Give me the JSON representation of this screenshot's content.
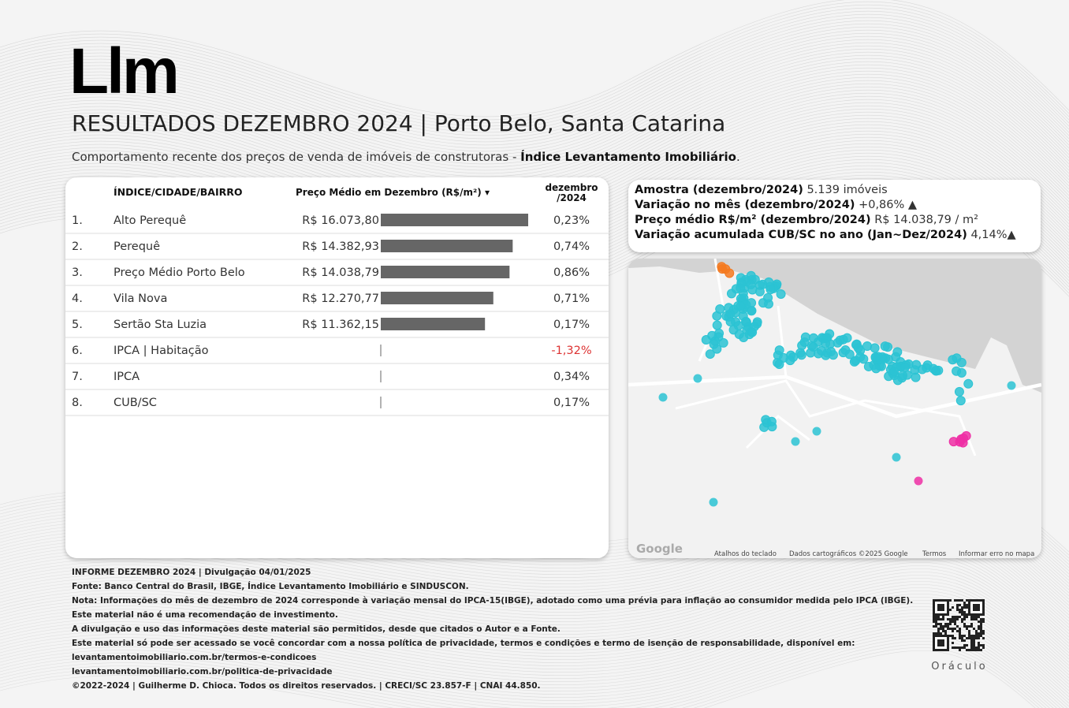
{
  "header": {
    "logo": "Llm",
    "title": "RESULTADOS DEZEMBRO 2024 | Porto Belo, Santa Catarina",
    "subtitle_prefix": "Comportamento recente dos preços de venda de imóveis de construtoras - ",
    "subtitle_bold": "Índice Levantamento Imobiliário",
    "subtitle_suffix": "."
  },
  "table": {
    "columns": [
      "ÍNDICE/CIDADE/BAIRRO",
      "Preço Médio em Dezembro (R$/m²) ▾",
      [
        "dezembro",
        "/2024"
      ]
    ],
    "rows": [
      {
        "rank": "1.",
        "name": "Alto Perequê",
        "price": {
          "value": 16073.8,
          "label": "R$ 16.073,80"
        },
        "change": "0,23%"
      },
      {
        "rank": "2.",
        "name": "Perequê",
        "price": {
          "value": 14382.93,
          "label": "R$ 14.382,93"
        },
        "change": "0,74%"
      },
      {
        "rank": "3.",
        "name": "Preço Médio Porto Belo",
        "price": {
          "value": 14038.79,
          "label": "R$ 14.038,79"
        },
        "change": "0,86%"
      },
      {
        "rank": "4.",
        "name": "Vila Nova",
        "price": {
          "value": 12270.77,
          "label": "R$ 12.270,77"
        },
        "change": "0,71%"
      },
      {
        "rank": "5.",
        "name": "Sertão Sta Luzia",
        "price": {
          "value": 11362.15,
          "label": "R$ 11.362,15"
        },
        "change": "0,17%"
      },
      {
        "rank": "6.",
        "name": "IPCA | Habitação",
        "change": "-1,32%"
      },
      {
        "rank": "7.",
        "name": "IPCA",
        "change": "0,34%"
      },
      {
        "rank": "8.",
        "name": "CUB/SC",
        "change": "0,17%"
      }
    ]
  },
  "summary": [
    {
      "label": "Amostra (dezembro/2024)",
      "value": "5.139 imóveis"
    },
    {
      "label": "Variação no mês (dezembro/2024)",
      "value": "+0,86% ▲"
    },
    {
      "label": "Preço médio R$/m² (dezembro/2024)",
      "value": "R$ 14.038,79 / m²"
    },
    {
      "label": "Variação acumulada CUB/SC no ano (Jan~Dez/2024)",
      "value": "4,14%▲"
    }
  ],
  "map": {
    "logo": "Google",
    "attribution": [
      "Atalhos do teclado",
      "Dados cartográficos ©2025 Google",
      "Termos",
      "Informar erro no mapa"
    ]
  },
  "footer": {
    "lines": [
      "INFORME DEZEMBRO 2024 | Divulgação 04/01/2025",
      "Fonte: Banco Central do Brasil, IBGE, Índice Levantamento Imobiliário e SINDUSCON.",
      "Nota: Informações do mês de dezembro de 2024 corresponde à variação mensal do IPCA-15(IBGE), adotado como uma prévia para inflação ao consumidor medida pelo IPCA (IBGE).",
      "Este material não é uma recomendação de investimento.",
      "A divulgação e uso das informações deste material são permitidos, desde que citados o Autor e a Fonte.",
      "Este material só pode ser acessado se você concordar com a nossa política de privacidade, termos e condições e termo de isenção de responsabilidade, disponível em:",
      "levantamentoimobiliario.com.br/termos-e-condicoes",
      "levantamentoimobiliario.com.br/politica-de-privacidade",
      "©2022-2024 | Guilherme D. Chioca. Todos os direitos reservados. | CRECI/SC 23.857-F | CNAI 44.850."
    ],
    "qr_caption": "Oráculo"
  }
}
